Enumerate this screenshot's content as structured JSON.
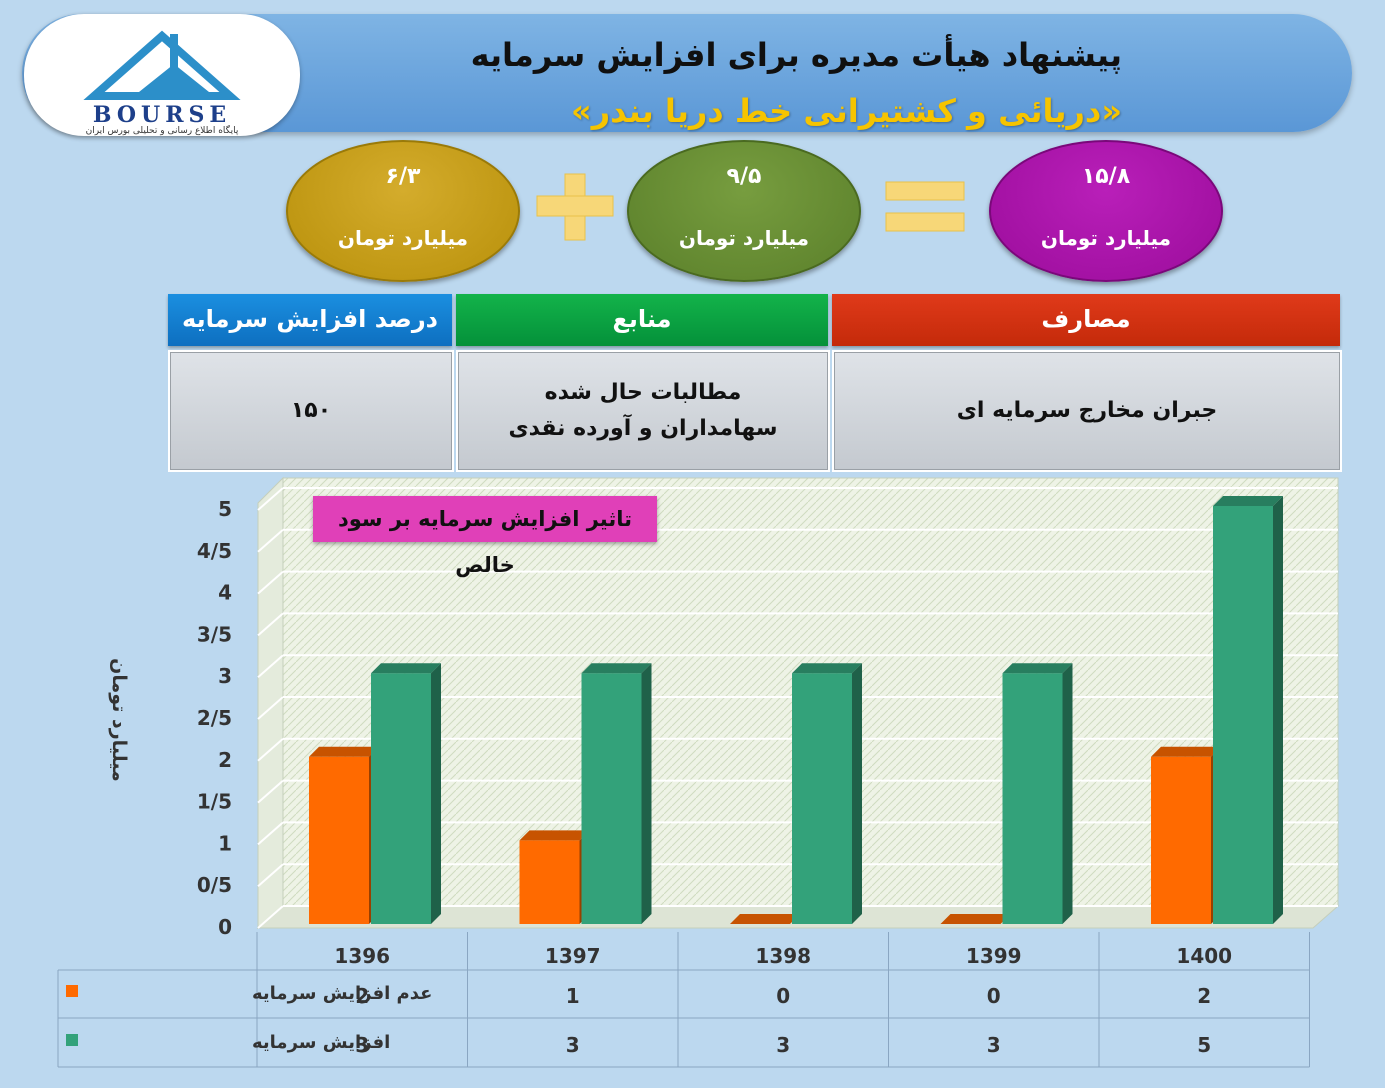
{
  "header": {
    "title": "پیشنهاد هیأت مدیره برای افزایش سرمایه",
    "subtitle": "«دریائی و کشتیرانی خط دریا بندر»",
    "logo_text": "BOURSE",
    "logo_sub": "پایگاه اطلاع رسانی و تحلیلی بورس ایران"
  },
  "ovals": {
    "gold": {
      "value": "۶/۳",
      "unit": "میلیارد تومان",
      "color": "#c9a21c"
    },
    "green": {
      "value": "۹/۵",
      "unit": "میلیارد تومان",
      "color": "#6b8f35"
    },
    "purple": {
      "value": "۱۵/۸",
      "unit": "میلیارد تومان",
      "color": "#a814a8"
    }
  },
  "table": {
    "pct_header": "درصد افزایش سرمایه",
    "src_header": "منابع",
    "use_header": "مصارف",
    "pct_value": "۱۵۰",
    "src_value": "مطالبات حال شده سهامداران و آورده نقدی",
    "use_value": "جبران مخارج سرمایه ای"
  },
  "chart_data": {
    "type": "bar",
    "title": "تاثیر افزایش سرمایه بر سود خالص",
    "ylabel": "میلیارد تومان",
    "xlabel": "",
    "categories": [
      "1396",
      "1397",
      "1398",
      "1399",
      "1400"
    ],
    "series": [
      {
        "name": "عدم افزایش سرمایه",
        "values": [
          2,
          1,
          0,
          0,
          2
        ],
        "color": "#ff6a00"
      },
      {
        "name": "افزایش سرمایه",
        "values": [
          3,
          3,
          3,
          3,
          5
        ],
        "color": "#33a27a"
      }
    ],
    "ylim": [
      0,
      5
    ],
    "yticks": [
      "0",
      "0/5",
      "1",
      "1/5",
      "2",
      "2/5",
      "3",
      "3/5",
      "4",
      "4/5",
      "5"
    ],
    "grid": true,
    "legend": "data-table-below"
  }
}
